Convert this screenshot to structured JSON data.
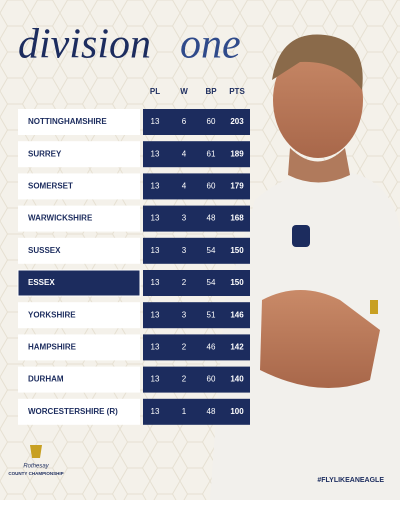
{
  "header": {
    "title_main": "division",
    "title_accent": "one"
  },
  "table": {
    "columns": [
      "PL",
      "W",
      "BP",
      "PTS"
    ],
    "rows": [
      [
        "NOTTINGHAMSHIRE",
        13,
        6,
        60,
        203
      ],
      [
        "SURREY",
        13,
        4,
        61,
        189
      ],
      [
        "SOMERSET",
        13,
        4,
        60,
        179
      ],
      [
        "WARWICKSHIRE",
        13,
        3,
        48,
        168
      ],
      [
        "SUSSEX",
        13,
        3,
        54,
        150
      ],
      [
        "ESSEX",
        13,
        2,
        54,
        150
      ],
      [
        "YORKSHIRE",
        13,
        3,
        51,
        146
      ],
      [
        "HAMPSHIRE",
        13,
        2,
        46,
        142
      ],
      [
        "DURHAM",
        13,
        2,
        60,
        140
      ],
      [
        "WORCESTERSHIRE (R)",
        13,
        1,
        48,
        100
      ]
    ],
    "highlight_row": 5
  },
  "footer": {
    "logo_sponsor": "Rothesay",
    "logo_name": "COUNTY CHAMPIONSHIP",
    "hashtag": "#FLYLIKEANEAGLE"
  }
}
